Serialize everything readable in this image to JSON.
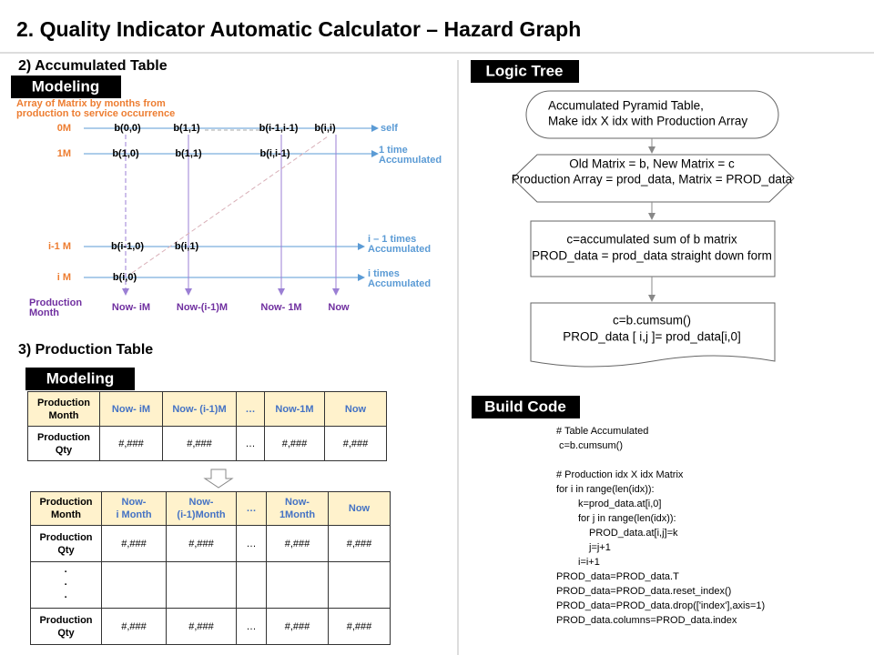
{
  "title": "2. Quality Indicator Automatic Calculator – Hazard Graph",
  "accumulated": {
    "heading": "2) Accumulated Table",
    "badge": "Modeling",
    "note": [
      "Array of Matrix by months from",
      "production to service occurrence"
    ],
    "rows": [
      {
        "label": "0M",
        "cells": [
          "b(0,0)",
          "b(1,1)",
          "b(i-1,i-1)",
          "b(i,i)"
        ],
        "end": [
          "self"
        ]
      },
      {
        "label": "1M",
        "cells": [
          "b(1,0)",
          "b(1,1)",
          "b(i,i-1)"
        ],
        "end": [
          "1 time",
          "Accumulated"
        ]
      },
      {
        "label": "i-1 M",
        "cells": [
          "b(i-1,0)",
          "b(i,1)"
        ],
        "end": [
          "i – 1 times",
          "Accumulated"
        ]
      },
      {
        "label": "i M",
        "cells": [
          "b(i,0)"
        ],
        "end": [
          "i  times",
          "Accumulated"
        ]
      }
    ],
    "axis_label": [
      "Production",
      "Month"
    ],
    "columns": [
      "Now- iM",
      "Now-(i-1)M",
      "Now- 1M",
      "Now"
    ]
  },
  "production": {
    "heading": "3) Production Table",
    "badge": "Modeling",
    "table1": {
      "header": [
        [
          "Production",
          "Month"
        ],
        [
          "Now- iM"
        ],
        [
          "Now- (i-1)M"
        ],
        [
          "…"
        ],
        [
          "Now-1M"
        ],
        [
          "Now"
        ]
      ],
      "rows": [
        [
          [
            "Production",
            "Qty"
          ],
          [
            "#,###"
          ],
          [
            "#,###"
          ],
          [
            "…"
          ],
          [
            "#,###"
          ],
          [
            "#,###"
          ]
        ]
      ]
    },
    "table2": {
      "header": [
        [
          "Production",
          "Month"
        ],
        [
          "Now-",
          "i Month"
        ],
        [
          "Now-",
          "(i-1)Month"
        ],
        [
          "…"
        ],
        [
          "Now-",
          "1Month"
        ],
        [
          "Now"
        ]
      ],
      "rows": [
        [
          [
            "Production",
            "Qty"
          ],
          [
            "#,###"
          ],
          [
            "#,###"
          ],
          [
            "…"
          ],
          [
            "#,###"
          ],
          [
            "#,###"
          ]
        ],
        [
          [
            "·",
            "·",
            "·"
          ],
          null,
          null,
          null,
          null,
          null
        ],
        [
          [
            "Production",
            "Qty"
          ],
          [
            "#,###"
          ],
          [
            "#,###"
          ],
          [
            "…"
          ],
          [
            "#,###"
          ],
          [
            "#,###"
          ]
        ]
      ]
    }
  },
  "logic_tree": {
    "badge": "Logic Tree",
    "nodes": [
      [
        "Accumulated Pyramid Table,",
        "Make idx X idx with Production Array"
      ],
      [
        "Old  Matrix = b,  New Matrix = c",
        "Production Array = prod_data, Matrix = PROD_data"
      ],
      [
        "c=accumulated sum of b matrix",
        "PROD_data = prod_data straight down form"
      ],
      [
        "c=b.cumsum()",
        "PROD_data [ i,j ]= prod_data[i,0]"
      ]
    ]
  },
  "build_code": {
    "badge": "Build Code",
    "blocks": [
      [
        "# Table Accumulated",
        "c=b.cumsum()"
      ],
      [
        "# Production idx X idx Matrix",
        "for i in range(len(idx)):",
        "k=prod_data.at[i,0]",
        "for j in range(len(idx)):",
        "PROD_data.at[i,j]=k",
        "j=j+1",
        "i=i+1",
        "PROD_data=PROD_data.T",
        "PROD_data=PROD_data.reset_index()",
        "PROD_data=PROD_data.drop(['index'],axis=1)",
        "PROD_data.columns=PROD_data.index"
      ]
    ]
  }
}
